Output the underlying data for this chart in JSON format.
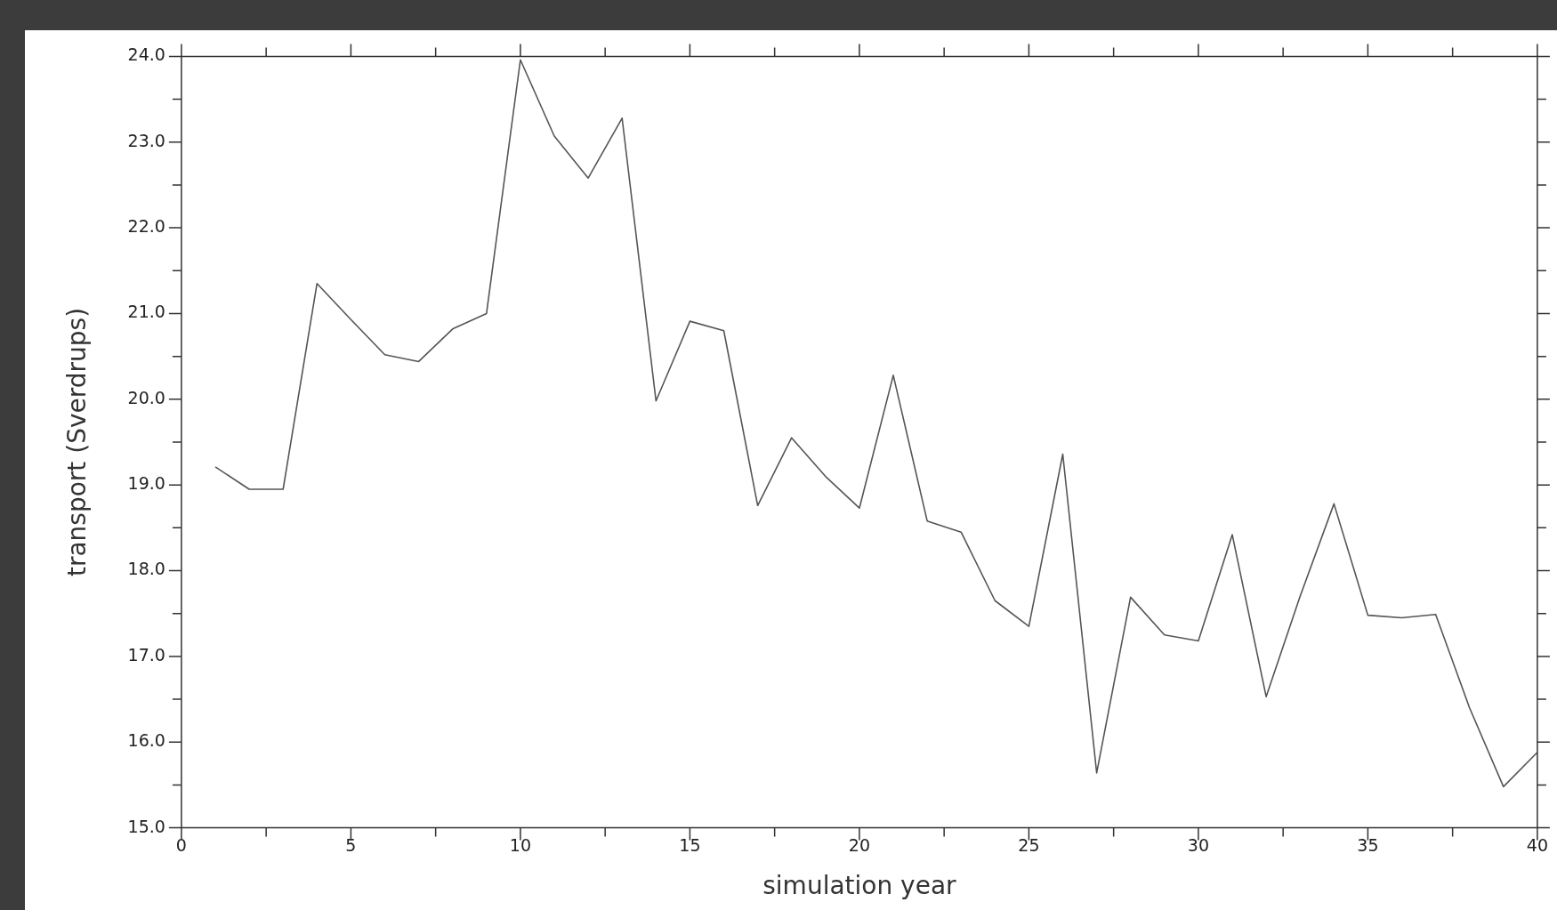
{
  "chart_data": {
    "type": "line",
    "xlabel": "simulation year",
    "ylabel": "transport (Sverdrups)",
    "x": [
      1,
      2,
      3,
      4,
      5,
      6,
      7,
      8,
      9,
      10,
      11,
      12,
      13,
      14,
      15,
      16,
      17,
      18,
      19,
      20,
      21,
      22,
      23,
      24,
      25,
      26,
      27,
      28,
      29,
      30,
      31,
      32,
      33,
      34,
      35,
      36,
      37,
      38,
      39,
      40
    ],
    "series": [
      {
        "color": "#555555",
        "values": [
          19.21,
          18.95,
          18.95,
          21.35,
          20.93,
          20.52,
          20.44,
          20.82,
          21.0,
          23.96,
          23.07,
          22.58,
          23.28,
          19.98,
          20.91,
          20.8,
          18.76,
          19.55,
          19.1,
          18.73,
          20.28,
          18.58,
          18.45,
          17.65,
          17.35,
          19.36,
          15.64,
          17.69,
          17.25,
          17.18,
          18.42,
          16.53,
          17.7,
          18.78,
          17.48,
          17.45,
          17.49,
          16.4,
          15.48,
          15.88
        ]
      }
    ],
    "xlim": [
      0,
      40
    ],
    "xticks": [
      0,
      {
        "value": 2.5,
        "label": null
      },
      5,
      {
        "value": 7.5,
        "label": null
      },
      10,
      {
        "value": 12.5,
        "label": null
      },
      15,
      {
        "value": 17.5,
        "label": null
      },
      20,
      {
        "value": 22.5,
        "label": null
      },
      25,
      {
        "value": 27.5,
        "label": null
      },
      30,
      {
        "value": 32.5,
        "label": null
      },
      35,
      {
        "value": 37.5,
        "label": null
      },
      40
    ],
    "ylim": [
      15,
      24
    ],
    "yticks": [
      {
        "value": 15,
        "label": "15.0"
      },
      {
        "value": 15.5,
        "label": null
      },
      {
        "value": 16,
        "label": "16.0"
      },
      {
        "value": 16.5,
        "label": null
      },
      {
        "value": 17,
        "label": "17.0"
      },
      {
        "value": 17.5,
        "label": null
      },
      {
        "value": 18,
        "label": "18.0"
      },
      {
        "value": 18.5,
        "label": null
      },
      {
        "value": 19,
        "label": "19.0"
      },
      {
        "value": 19.5,
        "label": null
      },
      {
        "value": 20,
        "label": "20.0"
      },
      {
        "value": 20.5,
        "label": null
      },
      {
        "value": 21,
        "label": "21.0"
      },
      {
        "value": 21.5,
        "label": null
      },
      {
        "value": 22,
        "label": "22.0"
      },
      {
        "value": 22.5,
        "label": null
      },
      {
        "value": 23,
        "label": "23.0"
      },
      {
        "value": 23.5,
        "label": null
      },
      {
        "value": 24,
        "label": "24.0"
      }
    ],
    "grid": false,
    "legend": false,
    "marker": "none",
    "line_style": "solid"
  }
}
